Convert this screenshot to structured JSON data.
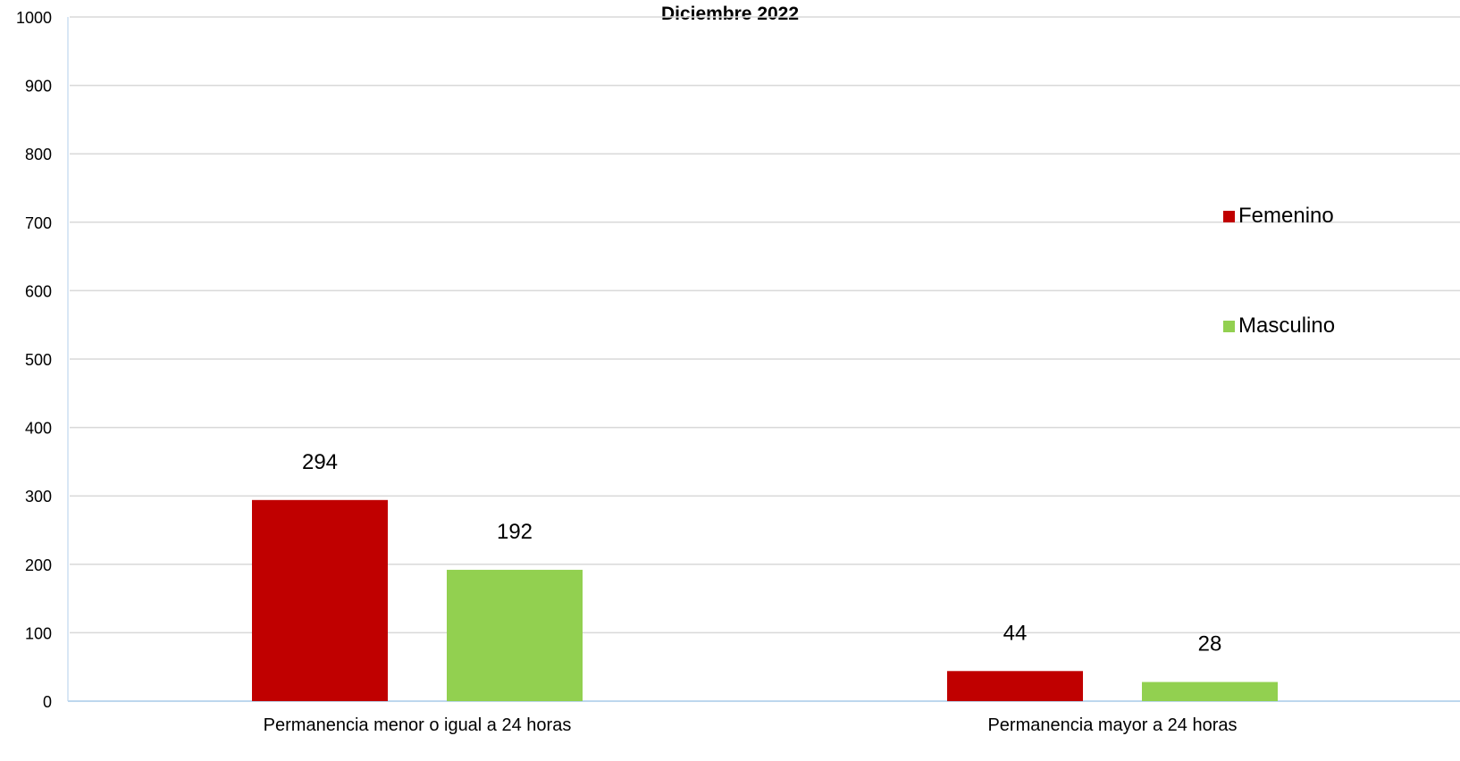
{
  "chart_data": {
    "type": "bar",
    "title": "Diciembre 2022",
    "categories": [
      "Permanencia menor o igual a 24 horas",
      "Permanencia mayor a 24 horas"
    ],
    "series": [
      {
        "name": "Femenino",
        "values": [
          294,
          44
        ],
        "color": "#c00000"
      },
      {
        "name": "Masculino",
        "values": [
          192,
          28
        ],
        "color": "#92d050"
      }
    ],
    "ylim": [
      0,
      1000
    ],
    "yticks": [
      0,
      100,
      200,
      300,
      400,
      500,
      600,
      700,
      800,
      900,
      1000
    ],
    "grid": true,
    "legend_position": "right",
    "xlabel": "",
    "ylabel": ""
  }
}
